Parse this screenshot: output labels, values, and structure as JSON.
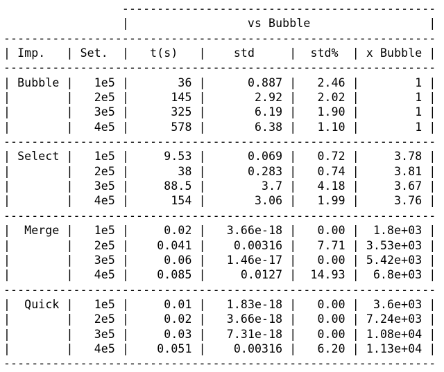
{
  "chart_data": {
    "type": "table",
    "title": "vs Bubble",
    "columns": [
      "Imp.",
      "Set.",
      "t(s)",
      "std",
      "std%",
      "x Bubble"
    ],
    "groups": [
      {
        "imp": "Bubble",
        "rows": [
          [
            "1e5",
            "36",
            "0.887",
            "2.46",
            "1"
          ],
          [
            "2e5",
            "145",
            "2.92",
            "2.02",
            "1"
          ],
          [
            "3e5",
            "325",
            "6.19",
            "1.90",
            "1"
          ],
          [
            "4e5",
            "578",
            "6.38",
            "1.10",
            "1"
          ]
        ]
      },
      {
        "imp": "Select",
        "rows": [
          [
            "1e5",
            "9.53",
            "0.069",
            "0.72",
            "3.78"
          ],
          [
            "2e5",
            "38",
            "0.283",
            "0.74",
            "3.81"
          ],
          [
            "3e5",
            "88.5",
            "3.7",
            "4.18",
            "3.67"
          ],
          [
            "4e5",
            "154",
            "3.06",
            "1.99",
            "3.76"
          ]
        ]
      },
      {
        "imp": "Merge",
        "rows": [
          [
            "1e5",
            "0.02",
            "3.66e-18",
            "0.00",
            "1.8e+03"
          ],
          [
            "2e5",
            "0.041",
            "0.00316",
            "7.71",
            "3.53e+03"
          ],
          [
            "3e5",
            "0.06",
            "1.46e-17",
            "0.00",
            "5.42e+03"
          ],
          [
            "4e5",
            "0.085",
            "0.0127",
            "14.93",
            "6.8e+03"
          ]
        ]
      },
      {
        "imp": "Quick",
        "rows": [
          [
            "1e5",
            "0.01",
            "1.83e-18",
            "0.00",
            "3.6e+03"
          ],
          [
            "2e5",
            "0.02",
            "3.66e-18",
            "0.00",
            "7.24e+03"
          ],
          [
            "3e5",
            "0.03",
            "7.31e-18",
            "0.00",
            "1.08e+04"
          ],
          [
            "4e5",
            "0.051",
            "0.00316",
            "6.20",
            "1.13e+04"
          ]
        ]
      }
    ],
    "layout_hints": {
      "grid": "ascii-dashed",
      "legend_position": "none",
      "value_alignment": "right"
    },
    "text_color": "#000000",
    "background_color": "#ffffff"
  }
}
